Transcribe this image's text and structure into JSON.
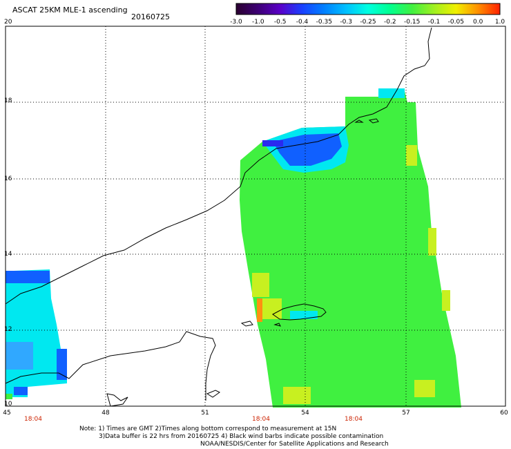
{
  "header": {
    "title": "ASCAT 25KM MLE-1 ascending",
    "date": "20160725"
  },
  "colorbar": {
    "labels": [
      "-3.0",
      "-1.0",
      "-0.5",
      "-0.4",
      "-0.35",
      "-0.3",
      "-0.25",
      "-0.2",
      "-0.15",
      "-0.1",
      "-0.05",
      "0.0",
      "1.0"
    ],
    "colors": [
      "#2a0030",
      "#3d0075",
      "#5a00c8",
      "#1a40ff",
      "#0080ff",
      "#00c0ff",
      "#00ffe0",
      "#00ff90",
      "#40f040",
      "#a0f020",
      "#f0f000",
      "#ff9000",
      "#ff2000"
    ]
  },
  "axes": {
    "y_labels": [
      "20",
      "18",
      "16",
      "14",
      "12",
      "10"
    ],
    "x_labels": [
      "45",
      "48",
      "51",
      "54",
      "57",
      "60"
    ],
    "time_labels": [
      "18:04",
      "18:04",
      "18:04"
    ]
  },
  "notes": {
    "line1": "Note: 1) Times are GMT 2)Times along bottom correspond to measurement at 15N",
    "line2": "3)Data buffer is 22 hrs from 20160725 4) Black wind barbs indicate possible contamination",
    "line3": "NOAA/NESDIS/Center for Satellite Applications and Research"
  },
  "map_colors": {
    "blue": "#1060ff",
    "deep_blue": "#2a2af0",
    "cyan": "#00e8f0",
    "green": "#40f040",
    "yellow": "#c8f020",
    "orange": "#ff9010"
  }
}
